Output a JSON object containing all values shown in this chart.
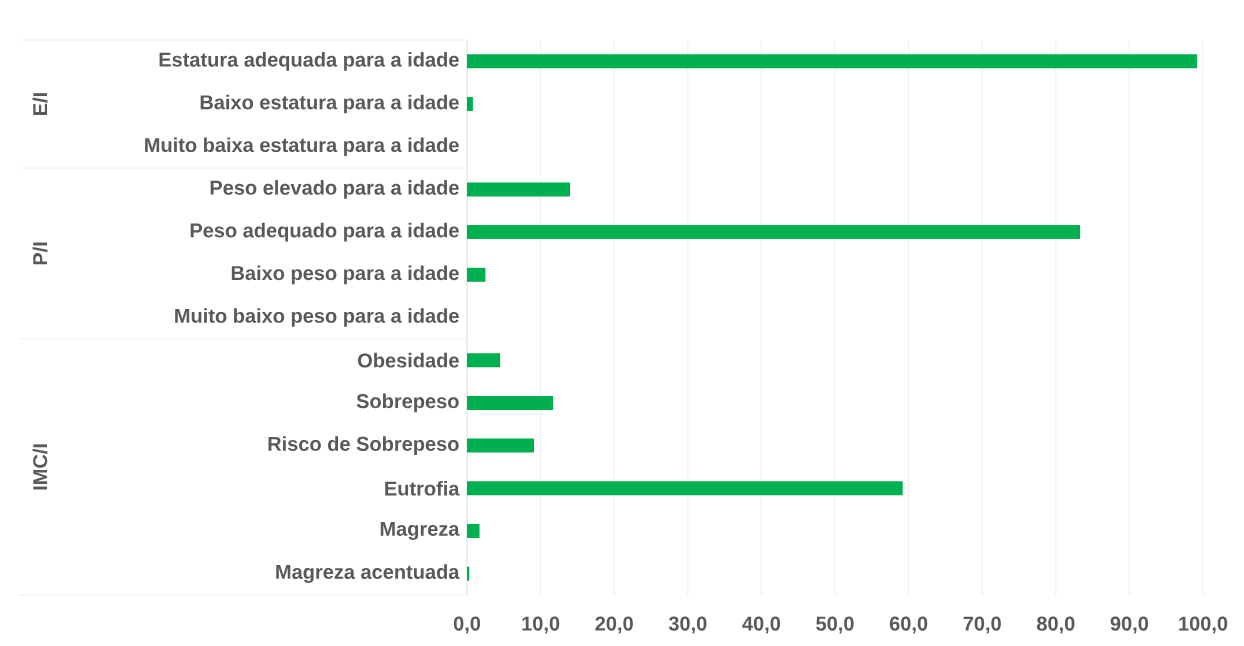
{
  "chart_data": {
    "type": "bar",
    "orientation": "horizontal",
    "categories": [
      "Estatura adequada para a idade",
      "Baixo estatura para a idade",
      "Muito baixa estatura para a idade",
      "Peso elevado para a idade",
      "Peso adequado para a idade",
      "Baixo peso para a idade",
      "Muito baixo peso para a idade",
      "Obesidade",
      "Sobrepeso",
      "Risco de Sobrepeso",
      "Eutrofia",
      "Magreza",
      "Magreza acentuada"
    ],
    "values": [
      99.2,
      0.8,
      0,
      14.0,
      83.3,
      2.5,
      0,
      4.5,
      11.7,
      9.1,
      59.2,
      1.7,
      0.3
    ],
    "color": "#00b050",
    "xlim": [
      0,
      100
    ],
    "xticks": [
      {
        "value": 0,
        "label": "0,0"
      },
      {
        "value": 10,
        "label": "10,0"
      },
      {
        "value": 20,
        "label": "20,0"
      },
      {
        "value": 30,
        "label": "30,0"
      },
      {
        "value": 40,
        "label": "40,0"
      },
      {
        "value": 50,
        "label": "50,0"
      },
      {
        "value": 60,
        "label": "60,0"
      },
      {
        "value": 70,
        "label": "70,0"
      },
      {
        "value": 80,
        "label": "80,0"
      },
      {
        "value": 90,
        "label": "90,0"
      },
      {
        "value": 100,
        "label": "100,0"
      }
    ],
    "grid": "x",
    "annotations": [
      "E/I",
      "P/I",
      "IMC/I"
    ]
  }
}
